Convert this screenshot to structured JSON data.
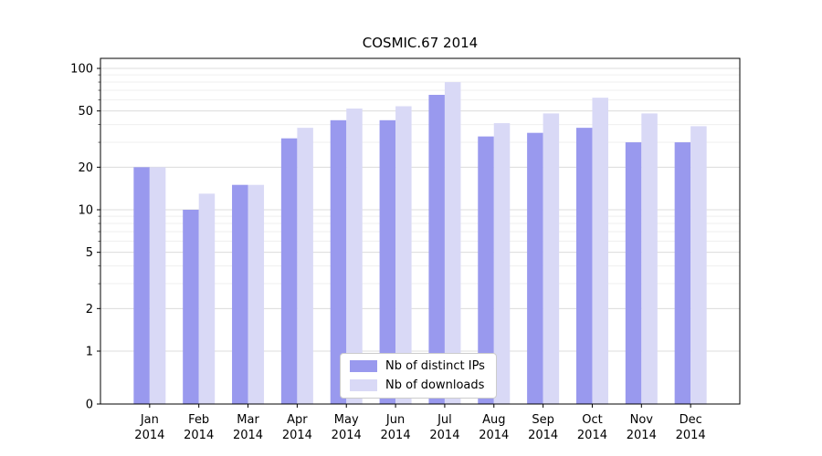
{
  "title": "COSMIC.67 2014",
  "chart_data": {
    "type": "bar",
    "title": "COSMIC.67 2014",
    "scale": "symlog",
    "grid": true,
    "legend_position": "lower center",
    "categories": [
      "Jan 2014",
      "Feb 2014",
      "Mar 2014",
      "Apr 2014",
      "May 2014",
      "Jun 2014",
      "Jul 2014",
      "Aug 2014",
      "Sep 2014",
      "Oct 2014",
      "Nov 2014",
      "Dec 2014"
    ],
    "series": [
      {
        "name": "Nb of distinct IPs",
        "color": "#9999ee",
        "values": [
          20,
          10,
          15,
          32,
          43,
          43,
          65,
          33,
          35,
          38,
          30,
          30
        ]
      },
      {
        "name": "Nb of downloads",
        "color": "#d9d9f6",
        "values": [
          20,
          13,
          15,
          38,
          52,
          54,
          80,
          41,
          48,
          62,
          48,
          39
        ]
      }
    ],
    "yticks": [
      0,
      1,
      2,
      5,
      10,
      20,
      50,
      100
    ],
    "minor_ticks": [
      3,
      4,
      6,
      7,
      8,
      9,
      30,
      40,
      60,
      70,
      80,
      90
    ],
    "ylim": [
      0,
      110
    ]
  },
  "colors": {
    "major_grid": "#dcdcdc",
    "minor_grid": "#efefef",
    "axis": "#000000",
    "background": "#ffffff"
  }
}
